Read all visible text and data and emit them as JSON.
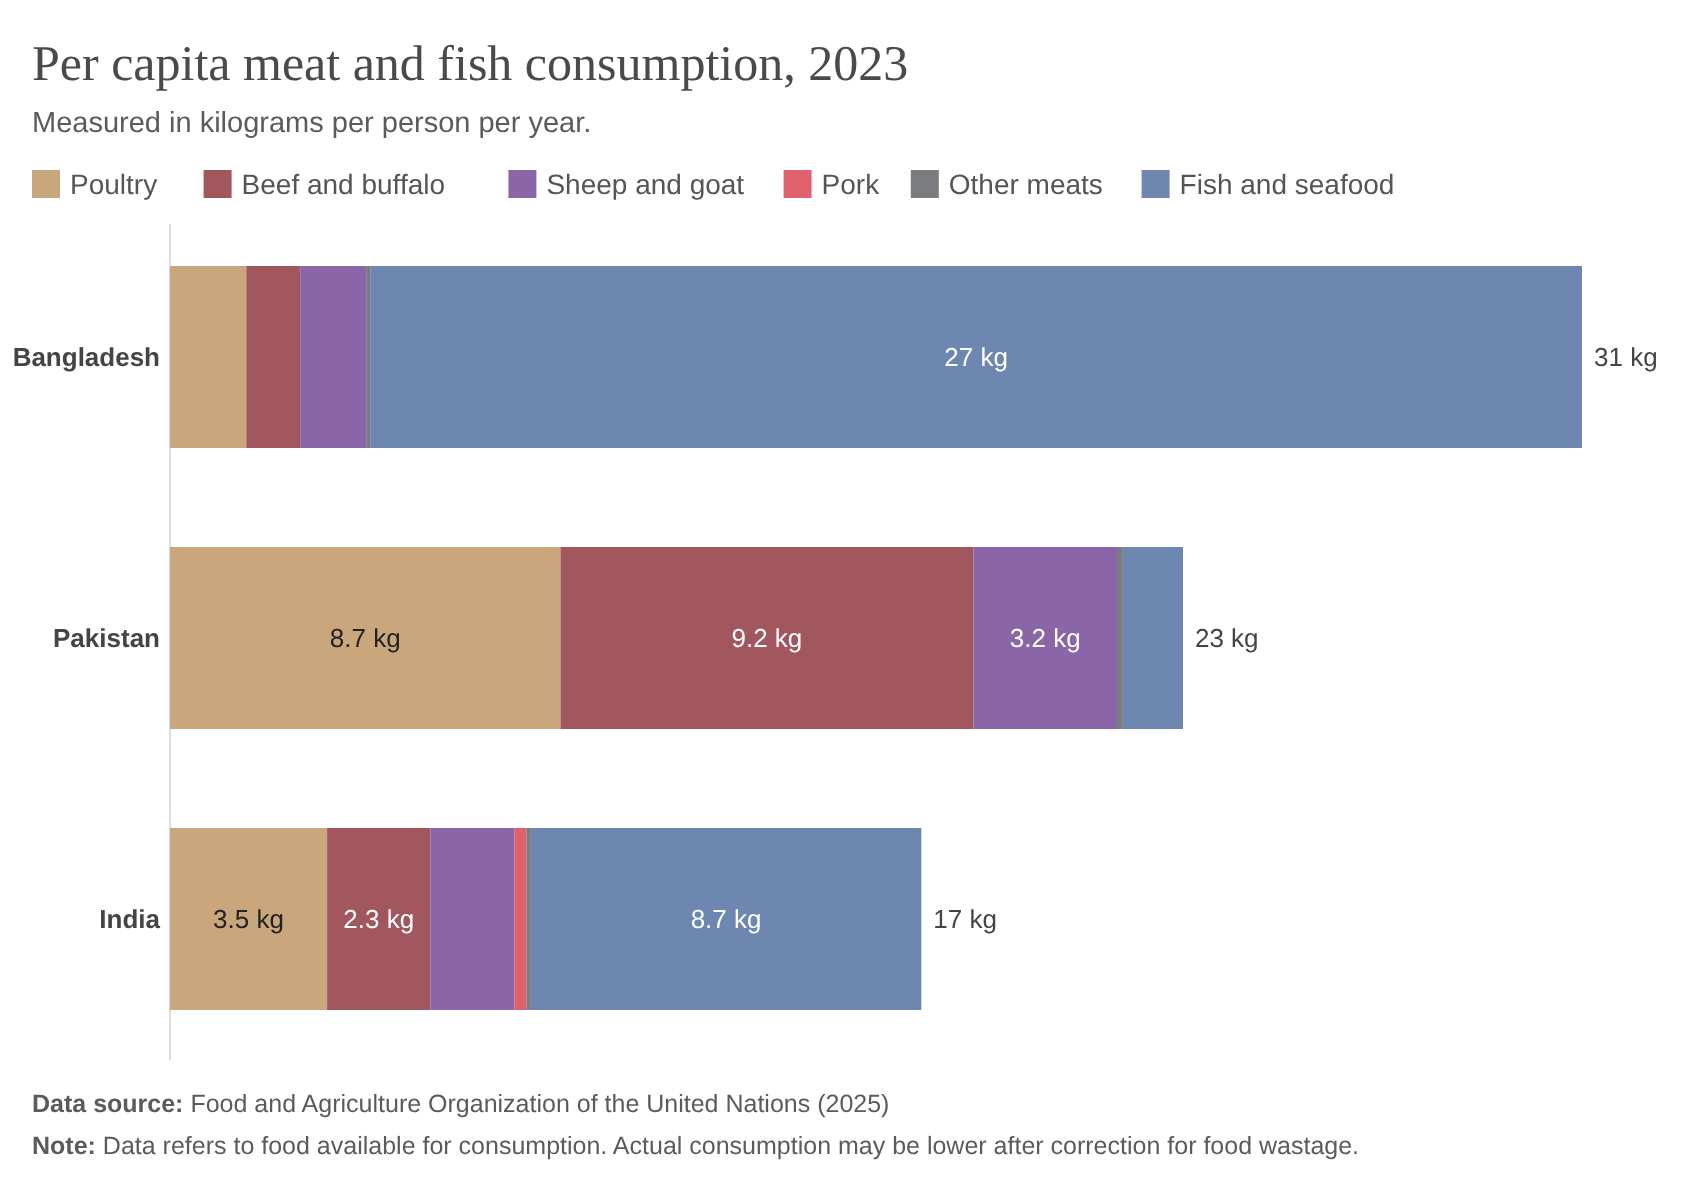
{
  "chart_data": {
    "type": "bar",
    "orientation": "horizontal",
    "stacked": true,
    "title": "Per capita meat and fish consumption, 2023",
    "subtitle": "Measured in kilograms per person per year.",
    "categories": [
      "Bangladesh",
      "Pakistan",
      "India"
    ],
    "series": [
      {
        "name": "Poultry",
        "color": "#c9a67b",
        "values": [
          1.7,
          8.7,
          3.5
        ],
        "value_labels": [
          null,
          "8.7 kg",
          "3.5 kg"
        ]
      },
      {
        "name": "Beef and buffalo",
        "color": "#a2575f",
        "values": [
          1.2,
          9.2,
          2.3
        ],
        "value_labels": [
          null,
          "9.2 kg",
          "2.3 kg"
        ]
      },
      {
        "name": "Sheep and goat",
        "color": "#8a65a8",
        "values": [
          1.47,
          3.2,
          1.87
        ],
        "value_labels": [
          null,
          "3.2 kg",
          null
        ]
      },
      {
        "name": "Pork",
        "color": "#e0616e",
        "values": [
          0,
          0,
          0.27
        ],
        "value_labels": [
          null,
          null,
          null
        ]
      },
      {
        "name": "Other meats",
        "color": "#7a7c80",
        "values": [
          0.09,
          0.13,
          0.1
        ],
        "value_labels": [
          null,
          null,
          null
        ]
      },
      {
        "name": "Fish and seafood",
        "color": "#6d87b0",
        "values": [
          27,
          1.34,
          8.7
        ],
        "value_labels": [
          "27 kg",
          null,
          "8.7 kg"
        ]
      }
    ],
    "totals": [
      "31 kg",
      "23 kg",
      "17 kg"
    ],
    "legend": "top",
    "annotations": [
      "Data source: Food and Agriculture Organization of the United Nations (2025)",
      "Note: Data refers to food available for consumption. Actual consumption may be lower after correction for food wastage."
    ]
  }
}
